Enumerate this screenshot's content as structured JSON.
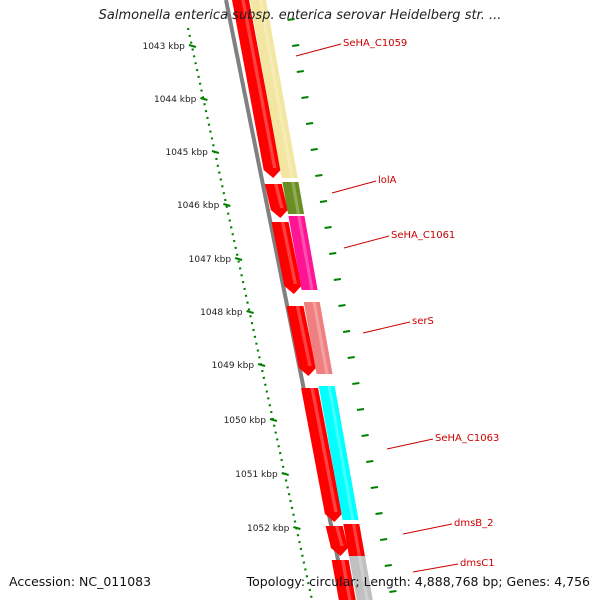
{
  "title": "Salmonella enterica subsp. enterica serovar Heidelberg str. ...",
  "accession": "Accession: NC_011083",
  "topology": "Topology: circular; Length: 4,888,768 bp; Genes: 4,756",
  "scale_labels": [
    "1043 kbp",
    "1044 kbp",
    "1045 kbp",
    "1046 kbp",
    "1047 kbp",
    "1048 kbp",
    "1049 kbp",
    "1050 kbp",
    "1051 kbp",
    "1052 kbp"
  ],
  "genes": [
    {
      "name": "SeHA_C1059",
      "color": "#f2e6a0"
    },
    {
      "name": "lolA",
      "color": "#6b8e23"
    },
    {
      "name": "SeHA_C1061",
      "color": "#ff1493"
    },
    {
      "name": "serS",
      "color": "#f08080"
    },
    {
      "name": "SeHA_C1063",
      "color": "#00ffff"
    },
    {
      "name": "dmsB_2",
      "color": "#ff0000"
    },
    {
      "name": "dmsC1",
      "color": "#c0c0c0"
    }
  ],
  "colors": {
    "cds": "#ff0000",
    "backbone": "#808080",
    "scale": "#008000",
    "label": "#cc0000"
  }
}
